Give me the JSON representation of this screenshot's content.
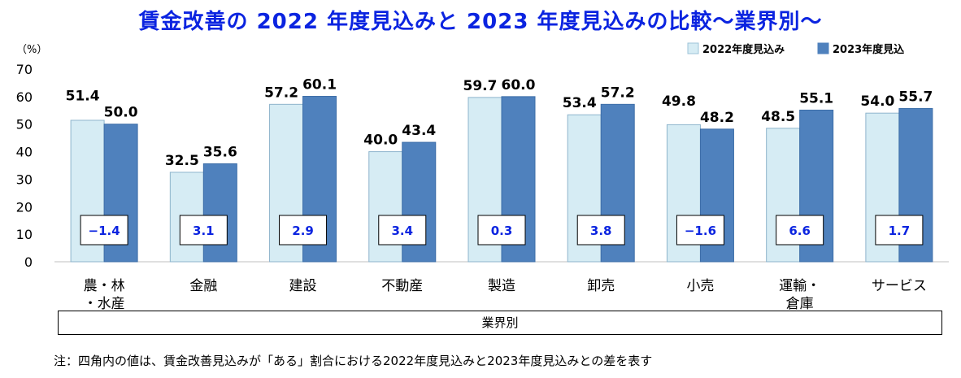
{
  "title": "賃金改善の 2022 年度見込みと 2023 年度見込みの比較～業界別～",
  "footnote": "注：四角内の値は、賃金改善見込みが「ある」割合における2022年度見込みと2023年度見込みとの差を表す",
  "colors": {
    "title": "#0b24e0",
    "diff_text": "#0b24e0",
    "series_2022": "#d6ecf4",
    "series_2023": "#4f81bd"
  },
  "chart_data": {
    "type": "bar",
    "title": "賃金改善の 2022 年度見込みと 2023 年度見込みの比較～業界別～",
    "ylabel": "（%）",
    "xlabel": "業界別",
    "ylim": [
      0,
      70
    ],
    "yticks": [
      0,
      10,
      20,
      30,
      40,
      50,
      60,
      70
    ],
    "grid": false,
    "legend": "top-right",
    "categories": [
      [
        "農・林",
        "・水産"
      ],
      [
        "金融"
      ],
      [
        "建設"
      ],
      [
        "不動産"
      ],
      [
        "製造"
      ],
      [
        "卸売"
      ],
      [
        "小売"
      ],
      [
        "運輸・",
        "倉庫"
      ],
      [
        "サービス"
      ]
    ],
    "series": [
      {
        "name": "2022年度見込み",
        "values": [
          51.4,
          32.5,
          57.2,
          40.0,
          59.7,
          53.4,
          49.8,
          48.5,
          54.0
        ],
        "labels": [
          "51.4",
          "32.5",
          "57.2",
          "40.0",
          "59.7",
          "53.4",
          "49.8",
          "48.5",
          "54.0"
        ]
      },
      {
        "name": "2023年度見込",
        "values": [
          50.0,
          35.6,
          60.1,
          43.4,
          60.0,
          57.2,
          48.2,
          55.1,
          55.7
        ],
        "labels": [
          "50.0",
          "35.6",
          "60.1",
          "43.4",
          "60.0",
          "57.2",
          "48.2",
          "55.1",
          "55.7"
        ]
      }
    ],
    "differences": [
      "−1.4",
      "3.1",
      "2.9",
      "3.4",
      "0.3",
      "3.8",
      "−1.6",
      "6.6",
      "1.7"
    ]
  }
}
